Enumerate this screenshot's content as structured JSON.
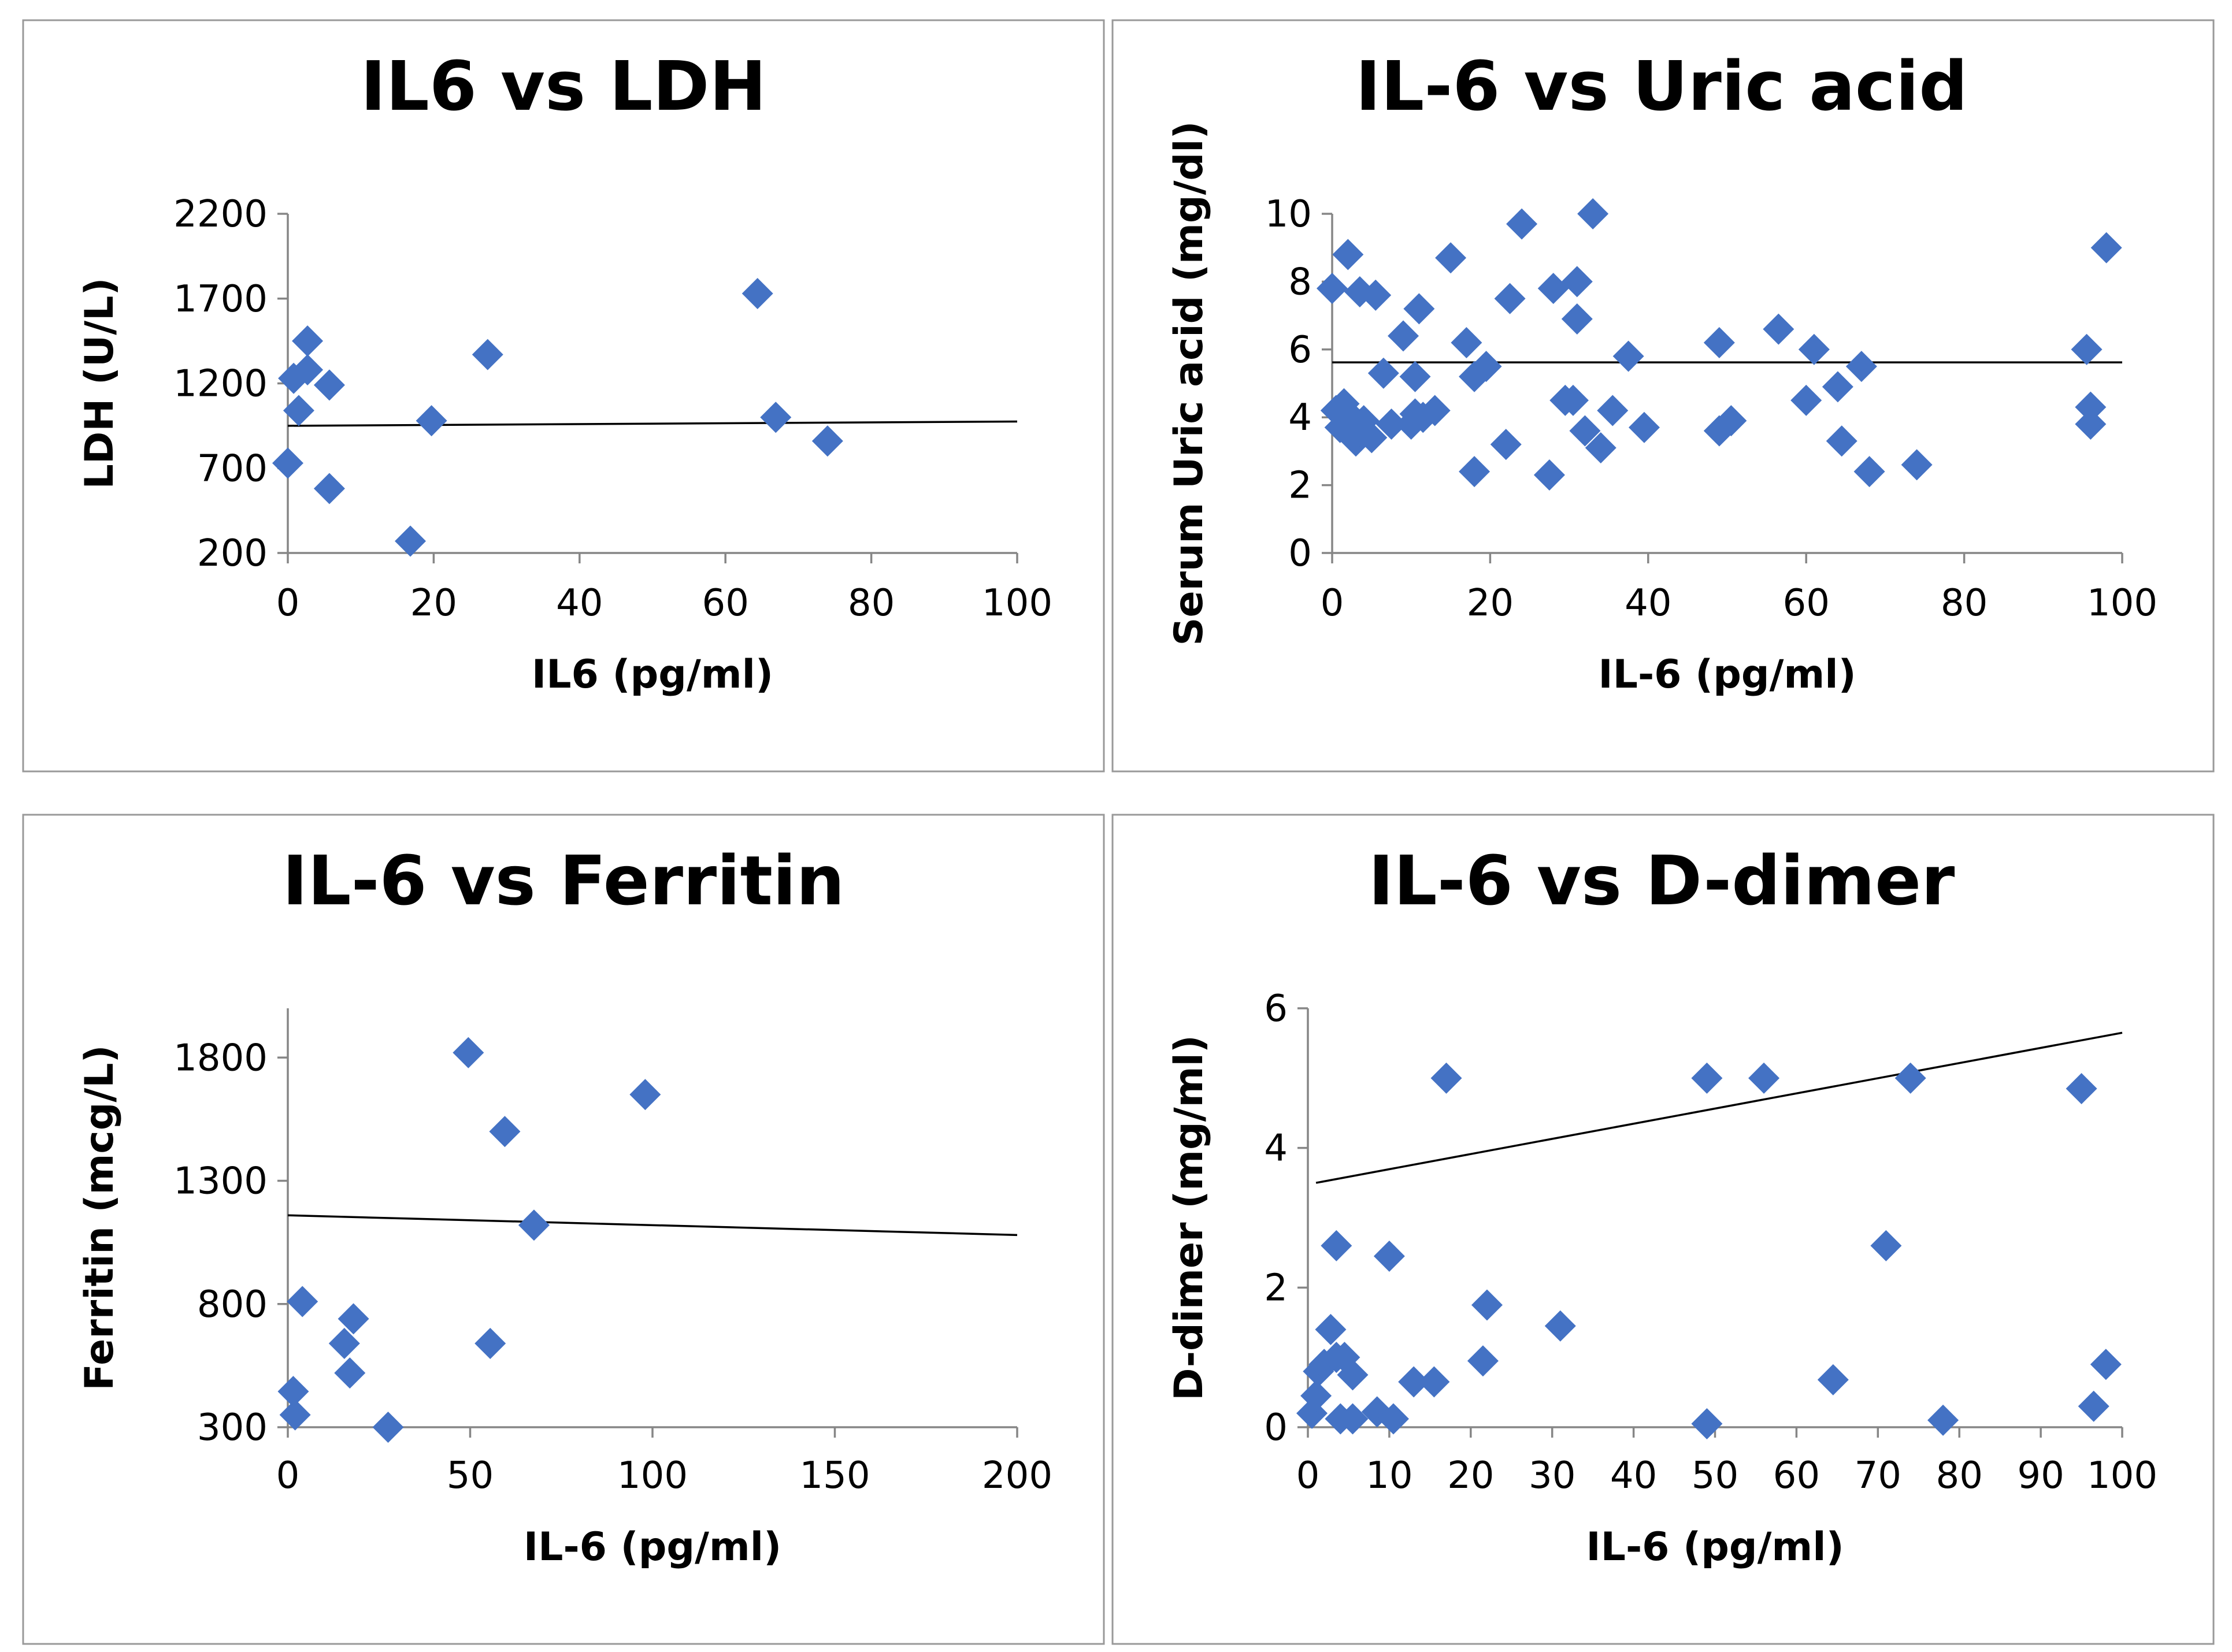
{
  "figure": {
    "marker_color": "#4472C4",
    "trend_color": "#000000",
    "frame_color": "#999999"
  },
  "chart_data": [
    {
      "type": "scatter",
      "title": "IL6 vs LDH",
      "xlabel": "IL6 (pg/ml)",
      "ylabel": "LDH (U/L)",
      "xlim": [
        0,
        100
      ],
      "ylim": [
        200,
        2200
      ],
      "xticks": [
        0,
        20,
        40,
        60,
        80,
        100
      ],
      "yticks": [
        200,
        700,
        1200,
        1700,
        2200
      ],
      "trendline": {
        "x": [
          0,
          100
        ],
        "y": [
          950,
          975
        ]
      },
      "points": [
        [
          0,
          730
        ],
        [
          0.8,
          1230
        ],
        [
          1.5,
          1040
        ],
        [
          2.7,
          1450
        ],
        [
          2.7,
          1280
        ],
        [
          5.7,
          1190
        ],
        [
          5.7,
          580
        ],
        [
          16.8,
          270
        ],
        [
          19.7,
          980
        ],
        [
          27.4,
          1370
        ],
        [
          64.4,
          1730
        ],
        [
          66.9,
          1000
        ],
        [
          74,
          860
        ]
      ]
    },
    {
      "type": "scatter",
      "title": "IL-6 vs Uric acid",
      "xlabel": "IL-6 (pg/ml)",
      "ylabel": "Serum Uric acid (mg/dl)",
      "xlim": [
        0,
        100
      ],
      "ylim": [
        0,
        10
      ],
      "xticks": [
        0,
        20,
        40,
        60,
        80,
        100
      ],
      "yticks": [
        0,
        2,
        4,
        6,
        8,
        10
      ],
      "trendline": {
        "x": [
          0,
          100
        ],
        "y": [
          5.62,
          5.62
        ]
      },
      "points": [
        [
          0,
          7.8
        ],
        [
          0.5,
          4.2
        ],
        [
          1,
          3.7
        ],
        [
          1.5,
          4.4
        ],
        [
          2,
          3.8
        ],
        [
          2,
          8.8
        ],
        [
          2.5,
          4.0
        ],
        [
          3,
          3.3
        ],
        [
          3.5,
          3.6
        ],
        [
          3.5,
          7.7
        ],
        [
          4,
          3.9
        ],
        [
          5,
          3.4
        ],
        [
          5.5,
          7.6
        ],
        [
          6.5,
          5.3
        ],
        [
          7.5,
          3.8
        ],
        [
          9,
          6.4
        ],
        [
          10,
          3.8
        ],
        [
          10.5,
          4.1
        ],
        [
          10.5,
          5.2
        ],
        [
          11,
          7.2
        ],
        [
          11.5,
          4.0
        ],
        [
          13,
          4.2
        ],
        [
          15,
          8.7
        ],
        [
          17,
          6.2
        ],
        [
          18,
          2.4
        ],
        [
          18,
          5.2
        ],
        [
          19.5,
          5.5
        ],
        [
          22,
          3.2
        ],
        [
          22.5,
          7.5
        ],
        [
          24,
          9.7
        ],
        [
          27.5,
          2.3
        ],
        [
          28,
          7.8
        ],
        [
          29.5,
          4.5
        ],
        [
          30.5,
          4.5
        ],
        [
          31,
          8.0
        ],
        [
          31,
          6.9
        ],
        [
          32,
          3.6
        ],
        [
          33,
          10.0
        ],
        [
          34,
          3.1
        ],
        [
          35.5,
          4.2
        ],
        [
          37.5,
          5.8
        ],
        [
          39.5,
          3.7
        ],
        [
          49,
          6.2
        ],
        [
          49,
          3.6
        ],
        [
          50.5,
          3.9
        ],
        [
          56.5,
          6.6
        ],
        [
          60,
          4.5
        ],
        [
          61,
          6.0
        ],
        [
          64,
          4.9
        ],
        [
          64.5,
          3.3
        ],
        [
          67,
          5.5
        ],
        [
          68,
          2.4
        ],
        [
          74,
          2.6
        ],
        [
          95.5,
          6.0
        ],
        [
          96,
          4.3
        ],
        [
          96,
          3.8
        ],
        [
          98,
          9.0
        ]
      ]
    },
    {
      "type": "scatter",
      "title": "IL-6 vs Ferritin",
      "xlabel": "IL-6 (pg/ml)",
      "ylabel": "Ferritin (mcg/L)",
      "xlim": [
        0,
        200
      ],
      "ylim": [
        300,
        2000
      ],
      "xticks": [
        0,
        50,
        100,
        150,
        200
      ],
      "yticks": [
        300,
        800,
        1300,
        1800
      ],
      "trendline": {
        "x": [
          0,
          200
        ],
        "y": [
          1160,
          1080
        ]
      },
      "points": [
        [
          1.5,
          445
        ],
        [
          2,
          350
        ],
        [
          4,
          810
        ],
        [
          15.5,
          640
        ],
        [
          17,
          520
        ],
        [
          18,
          740
        ],
        [
          27.5,
          300
        ],
        [
          49.5,
          1820
        ],
        [
          55.5,
          640
        ],
        [
          59.5,
          1500
        ],
        [
          67.5,
          1120
        ],
        [
          98,
          1650
        ]
      ]
    },
    {
      "type": "scatter",
      "title": "IL-6 vs D-dimer",
      "xlabel": "IL-6 (pg/ml)",
      "ylabel": "D-dimer (mg/ml)",
      "xlim": [
        0,
        100
      ],
      "ylim": [
        0,
        6
      ],
      "xticks": [
        0,
        10,
        20,
        30,
        40,
        50,
        60,
        70,
        80,
        90,
        100
      ],
      "yticks": [
        0,
        2,
        4,
        6
      ],
      "trendline": {
        "x": [
          1,
          100
        ],
        "y": [
          3.5,
          5.65
        ]
      },
      "points": [
        [
          0.5,
          0.2
        ],
        [
          1,
          0.45
        ],
        [
          1.3,
          0.8
        ],
        [
          2,
          0.9
        ],
        [
          2.8,
          1.4
        ],
        [
          3.5,
          2.6
        ],
        [
          3.5,
          1.0
        ],
        [
          4,
          0.12
        ],
        [
          4.5,
          1.0
        ],
        [
          5.5,
          0.12
        ],
        [
          5.5,
          0.75
        ],
        [
          8.5,
          0.22
        ],
        [
          10,
          2.45
        ],
        [
          10.5,
          0.12
        ],
        [
          13,
          0.65
        ],
        [
          15.5,
          0.65
        ],
        [
          17,
          5.0
        ],
        [
          21.5,
          0.95
        ],
        [
          22,
          1.75
        ],
        [
          31,
          1.45
        ],
        [
          49,
          0.05
        ],
        [
          49,
          5.0
        ],
        [
          56,
          5.0
        ],
        [
          64.5,
          0.68
        ],
        [
          71,
          2.6
        ],
        [
          74,
          5.0
        ],
        [
          78,
          0.1
        ],
        [
          95,
          4.85
        ],
        [
          96.5,
          0.3
        ],
        [
          98,
          0.9
        ]
      ]
    }
  ]
}
